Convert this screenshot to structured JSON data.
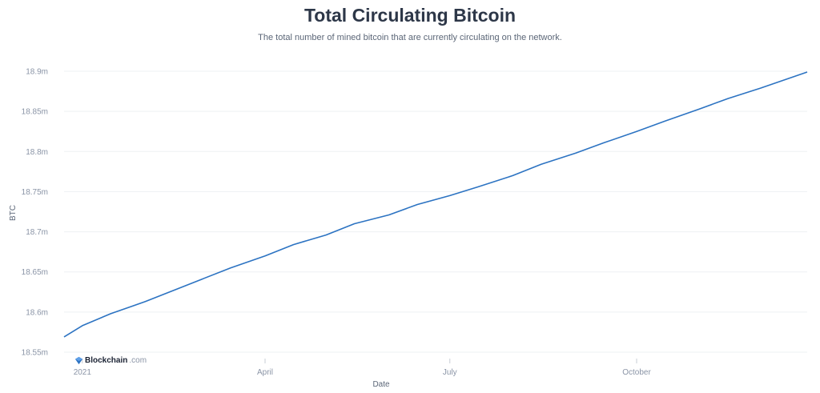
{
  "chart_data": {
    "type": "line",
    "title": "Total Circulating Bitcoin",
    "subtitle": "The total number of mined bitcoin that are currently circulating on the network.",
    "xlabel": "Date",
    "ylabel": "BTC",
    "ylim": [
      18.55,
      18.9
    ],
    "yticks": [
      18.55,
      18.6,
      18.65,
      18.7,
      18.75,
      18.8,
      18.85,
      18.9
    ],
    "ytick_labels": [
      "18.55m",
      "18.6m",
      "18.65m",
      "18.7m",
      "18.75m",
      "18.8m",
      "18.85m",
      "18.9m"
    ],
    "xlim": [
      "2020-12-23",
      "2021-12-24"
    ],
    "xticks": [
      "2021-01-01",
      "2021-04-01",
      "2021-07-01",
      "2021-10-01"
    ],
    "xtick_labels": [
      "2021",
      "April",
      "July",
      "October"
    ],
    "grid": "horizontal",
    "line_color": "#2c73c2",
    "series": [
      {
        "x": [
          "2020-12-23",
          "2021-01-01",
          "2021-01-15",
          "2021-02-01",
          "2021-02-15",
          "2021-03-01",
          "2021-03-15",
          "2021-04-01",
          "2021-04-15",
          "2021-05-01",
          "2021-05-15",
          "2021-06-01",
          "2021-06-15",
          "2021-07-01",
          "2021-07-15",
          "2021-08-01",
          "2021-08-15",
          "2021-09-01",
          "2021-09-15",
          "2021-10-01",
          "2021-10-15",
          "2021-11-01",
          "2021-11-15",
          "2021-12-01",
          "2021-12-24"
        ],
        "values": [
          18.569,
          18.583,
          18.598,
          18.613,
          18.627,
          18.641,
          18.655,
          18.67,
          18.684,
          18.696,
          18.71,
          18.721,
          18.734,
          18.745,
          18.756,
          18.77,
          18.784,
          18.798,
          18.811,
          18.825,
          18.838,
          18.853,
          18.866,
          18.879,
          18.899
        ]
      }
    ]
  },
  "watermark": {
    "brand": "Blockchain",
    "domain": ".com"
  }
}
